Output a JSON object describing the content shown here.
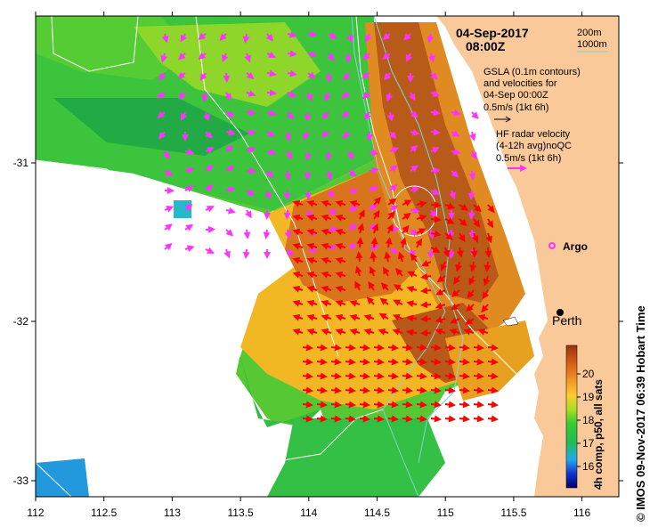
{
  "map": {
    "date_line1": "04-Sep-2017",
    "date_line2": "08:00Z",
    "contour_legend": [
      "200m",
      "1000m"
    ],
    "gsla_text": [
      "GSLA (0.1m contours)",
      "and velocities for",
      "04-Sep 00:00Z",
      "0.5m/s (1kt 6h)"
    ],
    "hf_text": [
      "HF radar velocity",
      "(4-12h avg)noQC",
      "0.5m/s (1kt 6h)"
    ],
    "argo_label": "Argo",
    "city_label": "Perth",
    "x_ticks": [
      "112",
      "112.5",
      "113",
      "113.5",
      "114",
      "114.5",
      "115",
      "115.5",
      "116"
    ],
    "y_ticks": [
      "-31",
      "-32",
      "-33"
    ],
    "colorbar_ticks": [
      "16",
      "17",
      "18",
      "19",
      "20"
    ],
    "colorbar_label": "4h comp, p50, all sats",
    "credit": "©  IMOS 09-Nov-2017 06:39 Hobart Time",
    "colors": {
      "land": "#f9c99a",
      "gsla_arrow": "#ff33ff",
      "hf_arrow": "#ff0000",
      "contour200": "#ffffff",
      "contour1000": "#7fd4d4"
    }
  }
}
